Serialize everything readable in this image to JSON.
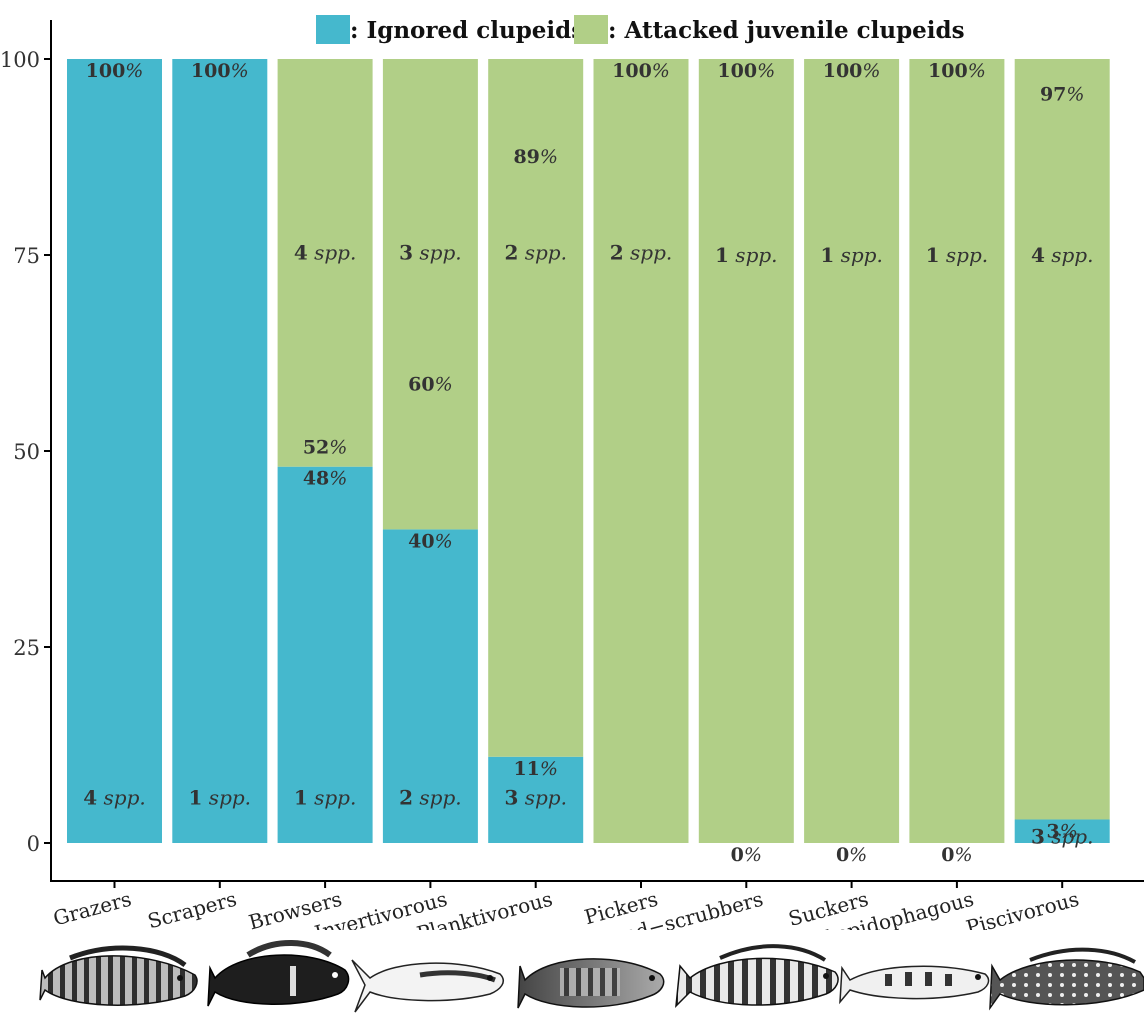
{
  "chart_data": {
    "type": "bar",
    "stacked": true,
    "ylim": [
      0,
      100
    ],
    "yticks": [
      "0",
      "25",
      "50",
      "75",
      "100"
    ],
    "categories": [
      "Grazers",
      "Scrapers",
      "Browsers",
      "Invertivorous",
      "Planktivorous",
      "Pickers",
      "Sand−scrubbers",
      "Suckers",
      "Lepidophagous",
      "Piscivorous"
    ],
    "legend": {
      "position": "top",
      "items": [
        {
          "label": ": Ignored clupeids",
          "color": "#45b8cd"
        },
        {
          "label": ": Attacked juvenile clupeids",
          "color": "#b1cf87"
        }
      ]
    },
    "series": [
      {
        "name": ": Ignored clupeids",
        "color": "#45b8cd",
        "values": [
          100,
          100,
          48,
          40,
          11,
          0,
          0,
          0,
          0,
          3
        ]
      },
      {
        "name": ": Attacked juvenile clupeids",
        "color": "#b1cf87",
        "values": [
          0,
          0,
          52,
          60,
          89,
          100,
          100,
          100,
          100,
          97
        ]
      }
    ],
    "pct_labels": [
      [
        {
          "n": "100",
          "y": 100
        }
      ],
      [
        {
          "n": "100",
          "y": 100
        }
      ],
      [
        {
          "n": "52",
          "y": 52
        },
        {
          "n": "48",
          "y": 48
        }
      ],
      [
        {
          "n": "60",
          "y": 60
        },
        {
          "n": "40",
          "y": 40
        }
      ],
      [
        {
          "n": "89",
          "y": 89
        },
        {
          "n": "11",
          "y": 11
        }
      ],
      [
        {
          "n": "100",
          "y": 100
        }
      ],
      [
        {
          "n": "100",
          "y": 100
        },
        {
          "n": "0",
          "y": 0
        }
      ],
      [
        {
          "n": "100",
          "y": 100
        },
        {
          "n": "0",
          "y": 0
        }
      ],
      [
        {
          "n": "100",
          "y": 100
        },
        {
          "n": "0",
          "y": 0
        }
      ],
      [
        {
          "n": "97",
          "y": 97
        },
        {
          "n": "3",
          "y": 3
        }
      ]
    ],
    "spp_labels": [
      [
        {
          "n": "4",
          "y": 5.8
        }
      ],
      [
        {
          "n": "1",
          "y": 5.8
        }
      ],
      [
        {
          "n": "4",
          "y": 75.3
        },
        {
          "n": "1",
          "y": 5.8
        }
      ],
      [
        {
          "n": "3",
          "y": 75.3
        },
        {
          "n": "2",
          "y": 5.8
        }
      ],
      [
        {
          "n": "2",
          "y": 75.3
        },
        {
          "n": "3",
          "y": 5.8
        }
      ],
      [
        {
          "n": "2",
          "y": 75.3
        }
      ],
      [
        {
          "n": "1",
          "y": 75
        }
      ],
      [
        {
          "n": "1",
          "y": 75
        }
      ],
      [
        {
          "n": "1",
          "y": 75
        }
      ],
      [
        {
          "n": "4",
          "y": 75
        },
        {
          "n": "3",
          "y": 0.8
        }
      ]
    ],
    "pct_symbol": "%",
    "spp_text": "spp.",
    "fish_icons": [
      "grazer-fish-icon",
      "scraper-fish-icon",
      "browser-fish-icon",
      "invertivorous-fish-icon",
      "planktivorous-fish-icon",
      "sucker-fish-icon",
      "piscivorous-fish-icon"
    ]
  }
}
